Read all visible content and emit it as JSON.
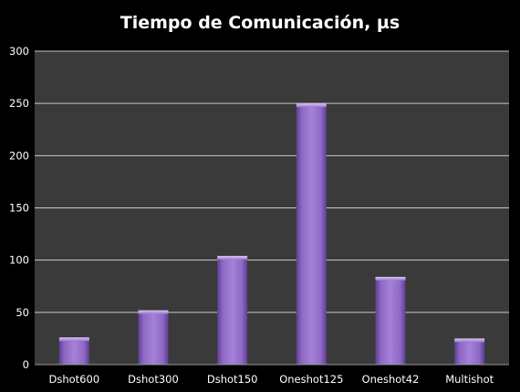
{
  "chart_data": {
    "type": "bar",
    "title": "Tiempo de Comunicación, µs",
    "xlabel": "",
    "ylabel": "",
    "categories": [
      "Dshot600",
      "Dshot300",
      "Dshot150",
      "Oneshot125",
      "Oneshot42",
      "Multishot"
    ],
    "values": [
      26,
      52,
      104,
      250,
      84,
      25
    ],
    "ylim": [
      0,
      300
    ],
    "yticks": [
      0,
      50,
      100,
      150,
      200,
      250,
      300
    ],
    "grid": true,
    "legend": "none",
    "colors": {
      "background": "#000000",
      "plot_area": "#3a3a3a",
      "gridline": "#c8c8c8",
      "bar": "#8a63c0",
      "bar_light": "#b396e0",
      "bar_dark": "#5a3a8c",
      "text": "#ffffff"
    }
  }
}
